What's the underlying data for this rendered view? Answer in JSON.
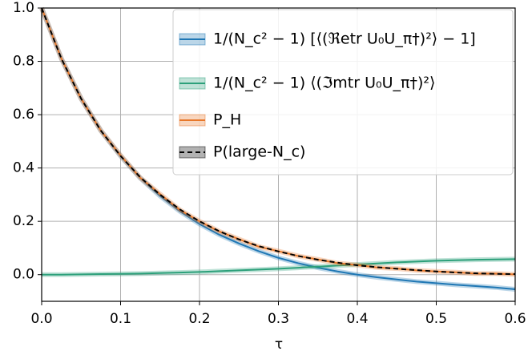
{
  "chart_data": {
    "type": "line",
    "xlabel": "τ",
    "x": [
      0,
      0.025,
      0.05,
      0.075,
      0.1,
      0.125,
      0.15,
      0.175,
      0.2,
      0.225,
      0.25,
      0.275,
      0.3,
      0.325,
      0.35,
      0.375,
      0.4,
      0.425,
      0.45,
      0.475,
      0.5,
      0.525,
      0.55,
      0.575,
      0.6
    ],
    "series": [
      {
        "name": "1/(N_c² − 1) [⟨(ℜetr U₀U_π†)²⟩ − 1]",
        "color": "#1f77b4",
        "linestyle": "solid",
        "values": [
          1.0,
          0.81,
          0.66,
          0.54,
          0.445,
          0.362,
          0.295,
          0.238,
          0.19,
          0.15,
          0.117,
          0.088,
          0.063,
          0.043,
          0.026,
          0.012,
          0.0,
          -0.01,
          -0.018,
          -0.026,
          -0.032,
          -0.038,
          -0.043,
          -0.048,
          -0.055
        ]
      },
      {
        "name": "1/(N_c² − 1) ⟨(ℑmtr U₀U_π†)²⟩",
        "color": "#2ca07a",
        "linestyle": "solid",
        "values": [
          0,
          0,
          0.001,
          0.002,
          0.003,
          0.004,
          0.006,
          0.008,
          0.01,
          0.013,
          0.016,
          0.019,
          0.022,
          0.026,
          0.03,
          0.034,
          0.038,
          0.042,
          0.046,
          0.049,
          0.052,
          0.054,
          0.056,
          0.057,
          0.058
        ]
      },
      {
        "name": "P_H",
        "color": "#e8782a",
        "linestyle": "solid",
        "values": [
          1.0,
          0.81,
          0.66,
          0.54,
          0.447,
          0.363,
          0.302,
          0.243,
          0.2,
          0.162,
          0.133,
          0.105,
          0.088,
          0.07,
          0.057,
          0.043,
          0.036,
          0.027,
          0.023,
          0.016,
          0.012,
          0.009,
          0.004,
          0.004,
          0.001
        ]
      },
      {
        "name": "P(large-N_c)",
        "color": "#000000",
        "linestyle": "dashed",
        "values": [
          1.0,
          0.81,
          0.66,
          0.54,
          0.445,
          0.365,
          0.3,
          0.245,
          0.2,
          0.163,
          0.132,
          0.107,
          0.087,
          0.07,
          0.056,
          0.045,
          0.035,
          0.028,
          0.022,
          0.017,
          0.012,
          0.008,
          0.005,
          0.003,
          0.002
        ]
      }
    ],
    "xlim": [
      0,
      0.6
    ],
    "ylim": [
      -0.1,
      1.0
    ],
    "xticks": [
      {
        "value": 0,
        "label": "0.0"
      },
      0.1,
      0.2,
      0.3,
      0.4,
      0.5,
      0.6
    ],
    "yticks": [
      {
        "value": 0,
        "label": "0.0"
      },
      0.2,
      0.4,
      0.6,
      0.8,
      {
        "value": 1,
        "label": "1.0"
      }
    ],
    "grid": true,
    "legend": "upper right"
  }
}
